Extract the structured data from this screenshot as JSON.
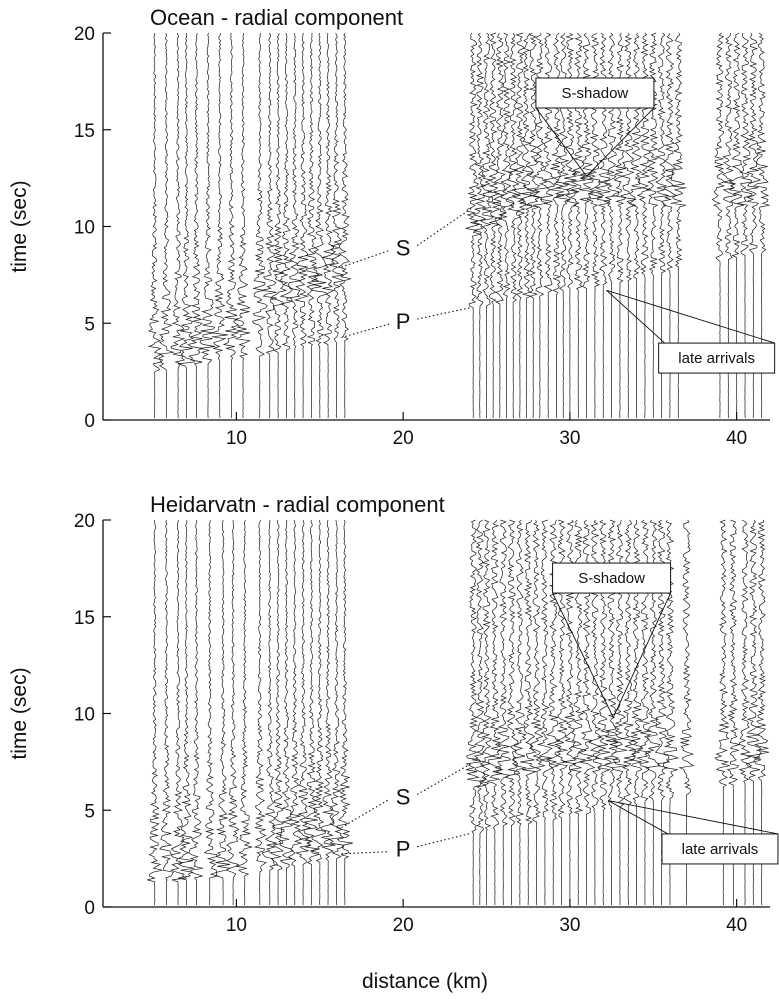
{
  "figure": {
    "xlabel": "distance (km)"
  },
  "chart_data": [
    {
      "type": "line",
      "title": "Ocean - radial component",
      "xlabel": "distance (km)",
      "ylabel": "time (sec)",
      "xlim": [
        2,
        42
      ],
      "ylim": [
        0,
        20
      ],
      "x_ticks": [
        10,
        20,
        30,
        40
      ],
      "y_ticks": [
        0,
        5,
        10,
        15,
        20
      ],
      "grid": false,
      "trace_distances_km": [
        5.1,
        5.8,
        6.5,
        7.0,
        7.6,
        8.3,
        9.0,
        9.7,
        10.4,
        11.4,
        12.0,
        12.5,
        13.0,
        13.5,
        14.0,
        14.5,
        15.0,
        15.5,
        16.0,
        16.5,
        24.2,
        24.6,
        25.0,
        25.4,
        25.8,
        26.2,
        26.6,
        27.0,
        27.4,
        27.8,
        28.2,
        28.7,
        29.2,
        29.6,
        30.0,
        30.5,
        31.0,
        31.5,
        32.0,
        32.5,
        33.0,
        33.5,
        34.0,
        34.5,
        35.0,
        35.5,
        36.0,
        36.5,
        39.0,
        39.5,
        40.0,
        40.5,
        41.0,
        41.5
      ],
      "arrivals": [
        {
          "phase": "P",
          "points": [
            {
              "x": 5,
              "y": 2.5
            },
            {
              "x": 10,
              "y": 3.2
            },
            {
              "x": 16,
              "y": 4.0
            },
            {
              "x": 24,
              "y": 5.8
            },
            {
              "x": 32,
              "y": 7.0
            },
            {
              "x": 41,
              "y": 8.6
            }
          ]
        },
        {
          "phase": "S",
          "points": [
            {
              "x": 5,
              "y": 3.2
            },
            {
              "x": 10,
              "y": 4.6
            },
            {
              "x": 12,
              "y": 6.5
            },
            {
              "x": 16,
              "y": 7.8
            },
            {
              "x": 24,
              "y": 10.5
            },
            {
              "x": 28,
              "y": 12.0
            }
          ]
        }
      ],
      "annotations": [
        {
          "type": "phase",
          "text": "S",
          "x": 20,
          "y": 8.5
        },
        {
          "type": "phase",
          "text": "P",
          "x": 20,
          "y": 4.7
        },
        {
          "type": "callout",
          "text": "S-shadow",
          "x": 31.5,
          "y": 16.9
        },
        {
          "type": "callout",
          "text": "late arrivals",
          "x": 38.8,
          "y": 3.2
        }
      ]
    },
    {
      "type": "line",
      "title": "Heidarvatn - radial component",
      "xlabel": "distance (km)",
      "ylabel": "time (sec)",
      "xlim": [
        2,
        42
      ],
      "ylim": [
        0,
        20
      ],
      "x_ticks": [
        10,
        20,
        30,
        40
      ],
      "y_ticks": [
        0,
        5,
        10,
        15,
        20
      ],
      "grid": false,
      "trace_distances_km": [
        5.1,
        5.8,
        6.5,
        7.0,
        7.6,
        8.4,
        9.2,
        9.8,
        10.5,
        11.4,
        12.0,
        12.5,
        13.0,
        13.5,
        14.0,
        14.5,
        15.0,
        15.5,
        16.0,
        16.5,
        24.2,
        24.6,
        25.0,
        25.5,
        26.0,
        26.5,
        27.0,
        27.5,
        28.0,
        28.5,
        29.0,
        29.5,
        30.0,
        30.5,
        31.0,
        31.5,
        32.0,
        32.5,
        33.0,
        33.5,
        34.0,
        34.5,
        35.0,
        35.5,
        36.0,
        37.0,
        39.2,
        39.8,
        40.5,
        41.0,
        41.5
      ],
      "arrivals": [
        {
          "phase": "P",
          "points": [
            {
              "x": 5,
              "y": 1.3
            },
            {
              "x": 10,
              "y": 1.6
            },
            {
              "x": 16,
              "y": 2.5
            },
            {
              "x": 24,
              "y": 3.8
            },
            {
              "x": 32,
              "y": 5.0
            },
            {
              "x": 41,
              "y": 6.5
            }
          ]
        },
        {
          "phase": "S",
          "points": [
            {
              "x": 5,
              "y": 2.0
            },
            {
              "x": 10,
              "y": 2.7
            },
            {
              "x": 16,
              "y": 4.0
            },
            {
              "x": 24,
              "y": 7.0
            },
            {
              "x": 28,
              "y": 8.0
            }
          ]
        }
      ],
      "annotations": [
        {
          "type": "phase",
          "text": "S",
          "x": 20,
          "y": 5.3
        },
        {
          "type": "phase",
          "text": "P",
          "x": 20,
          "y": 2.6
        },
        {
          "type": "callout",
          "text": "S-shadow",
          "x": 32.5,
          "y": 17.0
        },
        {
          "type": "callout",
          "text": "late arrivals",
          "x": 39.0,
          "y": 3.0
        }
      ]
    }
  ]
}
